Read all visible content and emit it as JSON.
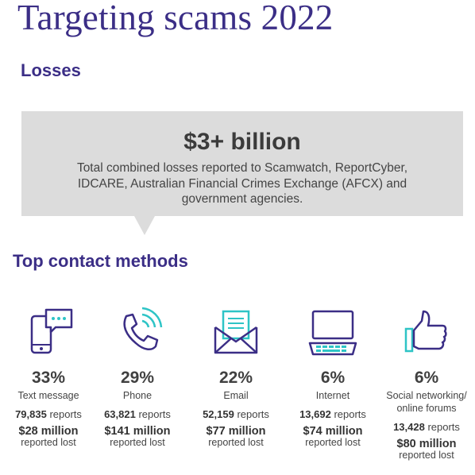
{
  "title": "Targeting scams 2022",
  "losses": {
    "heading": "Losses",
    "amount": "$3+ billion",
    "description": "Total combined losses reported to Scamwatch, ReportCyber, IDCARE, Australian Financial Crimes Exchange (AFCX) and government agencies."
  },
  "contact": {
    "heading": "Top contact methods",
    "reports_suffix": "reports",
    "lost_suffix": "reported lost",
    "methods": [
      {
        "icon": "text-message-icon",
        "percent": "33%",
        "label": "Text message",
        "reports": "79,835",
        "lost": "$28 million"
      },
      {
        "icon": "phone-icon",
        "percent": "29%",
        "label": "Phone",
        "reports": "63,821",
        "lost": "$141 million"
      },
      {
        "icon": "email-icon",
        "percent": "22%",
        "label": "Email",
        "reports": "52,159",
        "lost": "$77 million"
      },
      {
        "icon": "internet-icon",
        "percent": "6%",
        "label": "Internet",
        "reports": "13,692",
        "lost": "$74 million"
      },
      {
        "icon": "thumbs-up-icon",
        "percent": "6%",
        "label": "Social networking/ online forums",
        "reports": "13,428",
        "lost": "$80 million"
      }
    ]
  },
  "colors": {
    "brand": "#3b2e86",
    "accent": "#2ec4c6",
    "callout": "#dcdcdc"
  }
}
